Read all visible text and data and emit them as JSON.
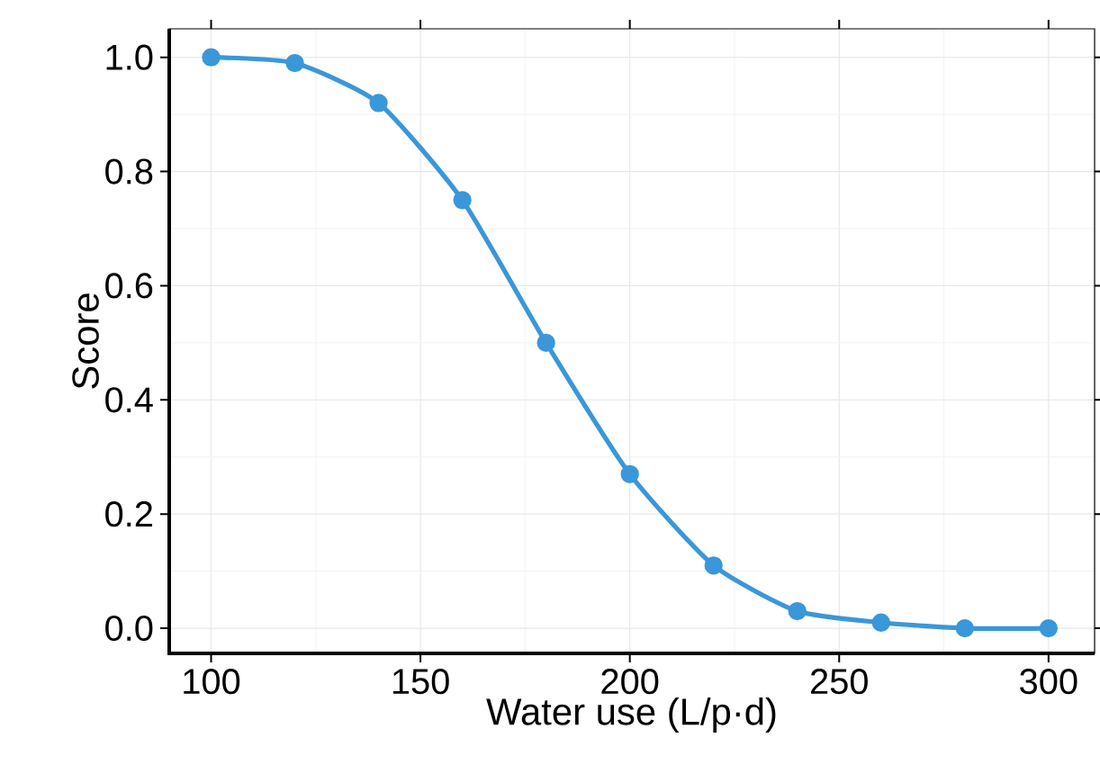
{
  "chart_data": {
    "type": "line",
    "xlabel": "Water use (L/p·d)",
    "ylabel": "Score",
    "x": [
      100,
      120,
      140,
      160,
      180,
      200,
      220,
      240,
      260,
      280,
      300
    ],
    "series": [
      {
        "color": "#3a97d9",
        "values": [
          1.0,
          0.99,
          0.92,
          0.75,
          0.5,
          0.27,
          0.11,
          0.03,
          0.01,
          0.0,
          0.0
        ]
      }
    ],
    "xlim": [
      90,
      311
    ],
    "ylim": [
      -0.044,
      1.05
    ],
    "xticks": [
      100,
      150,
      200,
      250,
      300
    ],
    "yticks": [
      {
        "value": 0,
        "label": "0.0"
      },
      {
        "value": 0.2,
        "label": "0.2"
      },
      {
        "value": 0.4,
        "label": "0.4"
      },
      {
        "value": 0.6,
        "label": "0.6"
      },
      {
        "value": 0.8,
        "label": "0.8"
      },
      {
        "value": 1,
        "label": "1.0"
      }
    ],
    "grid": true,
    "marker": "circle",
    "line_style": "solid"
  }
}
